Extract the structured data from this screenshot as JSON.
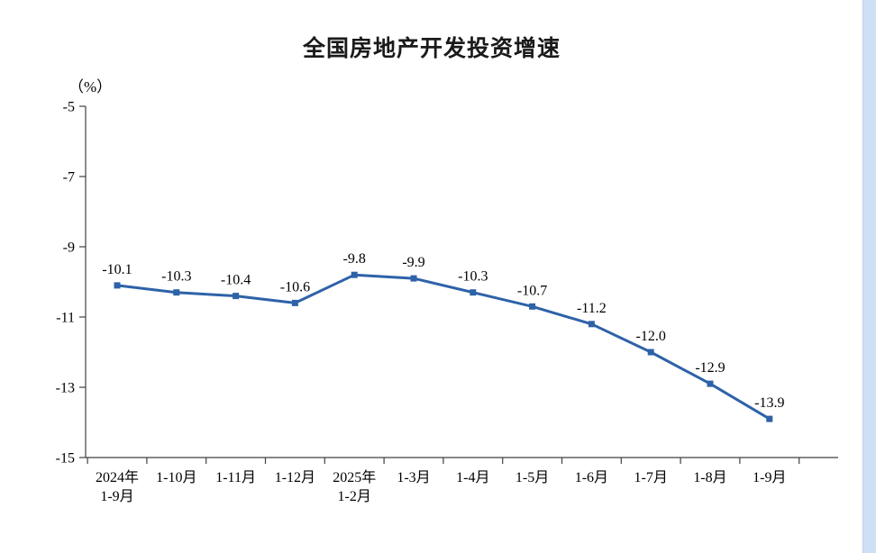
{
  "page": {
    "background": "#ffffff",
    "scrollbar_color": "#cfe0f4"
  },
  "chart_data": {
    "type": "line",
    "title": "全国房地产开发投资增速",
    "unit_label": "（%）",
    "xlabel": "",
    "ylabel": "（%）",
    "line_color": "#2e62a8",
    "axis_color": "#404040",
    "text_color": "#000000",
    "grid": false,
    "legend": "none",
    "marker": "square",
    "ylim": [
      -15,
      -5
    ],
    "y_ticks": [
      {
        "value": -5,
        "label": "-5"
      },
      {
        "value": -7,
        "label": "-7"
      },
      {
        "value": -9,
        "label": "-9"
      },
      {
        "value": -11,
        "label": "-11"
      },
      {
        "value": -13,
        "label": "-13"
      },
      {
        "value": -15,
        "label": "-15"
      }
    ],
    "categories": [
      "2024年\n1-9月",
      "1-10月",
      "1-11月",
      "1-12月",
      "2025年\n1-2月",
      "1-3月",
      "1-4月",
      "1-5月",
      "1-6月",
      "1-7月",
      "1-8月",
      "1-9月"
    ],
    "values": [
      -10.1,
      -10.3,
      -10.4,
      -10.6,
      -9.8,
      -9.9,
      -10.3,
      -10.7,
      -11.2,
      -12.0,
      -12.9,
      -13.9
    ],
    "value_labels": [
      "-10.1",
      "-10.3",
      "-10.4",
      "-10.6",
      "-9.8",
      "-9.9",
      "-10.3",
      "-10.7",
      "-11.2",
      "-12.0",
      "-12.9",
      "-13.9"
    ]
  }
}
